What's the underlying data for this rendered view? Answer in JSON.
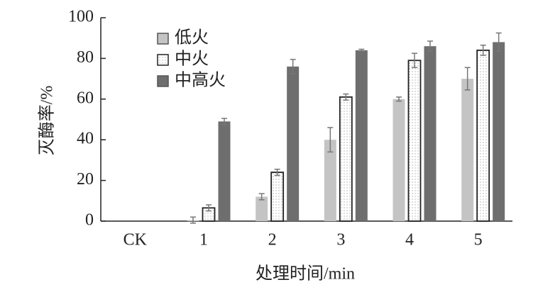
{
  "chart_data": {
    "type": "bar",
    "x_label": "处理时间/min",
    "y_label": "灭酶率/%",
    "categories": [
      "CK",
      "1",
      "2",
      "3",
      "4",
      "5"
    ],
    "series": [
      {
        "name": "低火",
        "color": "#c4c4c4",
        "values": [
          0,
          0.5,
          12,
          40,
          60,
          70
        ],
        "errors": [
          0,
          1.5,
          1.5,
          6,
          1,
          5.5
        ]
      },
      {
        "name": "中火",
        "color": "#ffffff",
        "hatch": "dots",
        "edge": "#222222",
        "values": [
          0,
          6.5,
          24,
          61,
          79,
          84
        ],
        "errors": [
          0,
          1.5,
          1.5,
          1.5,
          3.5,
          2.5
        ]
      },
      {
        "name": "中高火",
        "color": "#6e6e6e",
        "values": [
          0,
          49,
          76,
          84,
          86,
          88
        ],
        "errors": [
          0,
          1.5,
          3.5,
          0.5,
          2.5,
          4.5
        ]
      }
    ],
    "ylim": [
      0,
      100
    ],
    "yticks": [
      0,
      20,
      40,
      60,
      80,
      100
    ],
    "legend": "upper left"
  }
}
